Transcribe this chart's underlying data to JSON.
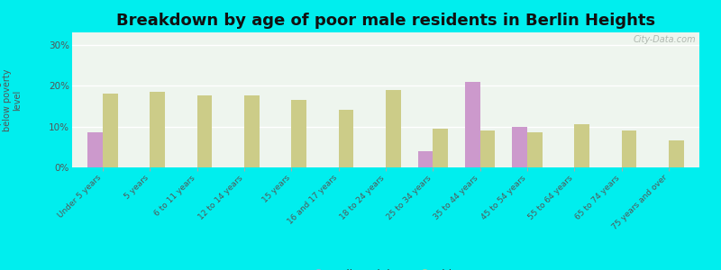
{
  "title": "Breakdown by age of poor male residents in Berlin Heights",
  "ylabel": "percentage\nbelow poverty\nlevel",
  "categories": [
    "Under 5 years",
    "5 years",
    "6 to 11 years",
    "12 to 14 years",
    "15 years",
    "16 and 17 years",
    "18 to 24 years",
    "25 to 34 years",
    "35 to 44 years",
    "45 to 54 years",
    "55 to 64 years",
    "65 to 74 years",
    "75 years and over"
  ],
  "berlin_heights": [
    8.5,
    null,
    null,
    null,
    null,
    null,
    null,
    4.0,
    21.0,
    10.0,
    null,
    null,
    null
  ],
  "ohio": [
    18.0,
    18.5,
    17.5,
    17.5,
    16.5,
    14.0,
    19.0,
    9.5,
    9.0,
    8.5,
    10.5,
    9.0,
    6.5
  ],
  "berlin_color": "#cc99cc",
  "ohio_color": "#cccc88",
  "background_color": "#00eeee",
  "plot_bg_color": "#eef5ee",
  "yticks": [
    0,
    10,
    20,
    30
  ],
  "ylim": [
    0,
    33
  ],
  "title_fontsize": 13,
  "watermark": "City-Data.com"
}
